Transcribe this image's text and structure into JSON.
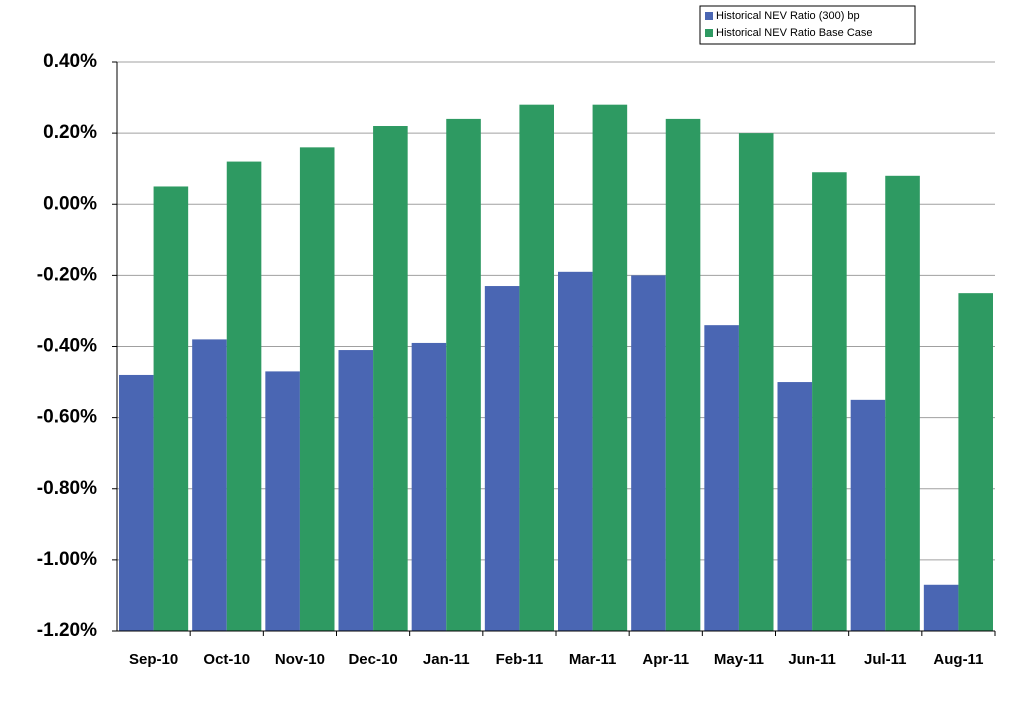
{
  "chart_data": {
    "type": "bar",
    "categories": [
      "Sep-10",
      "Oct-10",
      "Nov-10",
      "Dec-10",
      "Jan-11",
      "Feb-11",
      "Mar-11",
      "Apr-11",
      "May-11",
      "Jun-11",
      "Jul-11",
      "Aug-11"
    ],
    "series": [
      {
        "name": "Historical NEV Ratio (300) bp",
        "color": "#4a66b3",
        "values": [
          -0.48,
          -0.38,
          -0.47,
          -0.41,
          -0.39,
          -0.23,
          -0.19,
          -0.2,
          -0.34,
          -0.5,
          -0.55,
          -1.07
        ]
      },
      {
        "name": "Historical NEV Ratio Base Case",
        "color": "#2e9a62",
        "values": [
          0.05,
          0.12,
          0.16,
          0.22,
          0.24,
          0.28,
          0.28,
          0.24,
          0.2,
          0.09,
          0.08,
          -0.25
        ]
      }
    ],
    "ylim": [
      -1.2,
      0.4
    ],
    "yticks": [
      {
        "value": -1.2,
        "label": "-1.20%"
      },
      {
        "value": -1.0,
        "label": "-1.00%"
      },
      {
        "value": -0.8,
        "label": "-0.80%"
      },
      {
        "value": -0.6,
        "label": "-0.60%"
      },
      {
        "value": -0.4,
        "label": "-0.40%"
      },
      {
        "value": -0.2,
        "label": "-0.20%"
      },
      {
        "value": 0,
        "label": "0.00%"
      },
      {
        "value": 0.2,
        "label": "0.20%"
      },
      {
        "value": 0.4,
        "label": "0.40%"
      }
    ],
    "grid": true,
    "legend": "top-right"
  }
}
